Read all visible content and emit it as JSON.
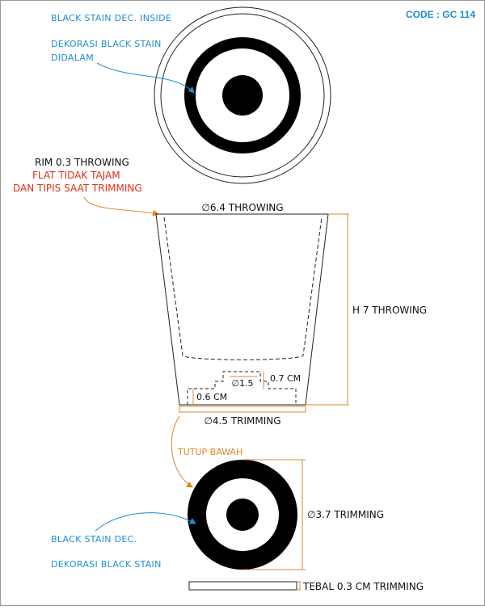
{
  "code_label": "CODE : GC 114",
  "top_view": {
    "label_en": "BLACK STAIN DEC. INSIDE",
    "label_id_line1": "DEKORASI BLACK STAIN",
    "label_id_line2": "DIDALAM"
  },
  "rim_note": {
    "line1": "RIM 0.3 THROWING",
    "line2": "FLAT TIDAK TAJAM",
    "line3": "DAN TIPIS SAAT TRIMMING"
  },
  "side_view": {
    "top_diameter": "∅6.4 THROWING",
    "height": "H 7 THROWING",
    "foot_inner_diameter": "∅1.5",
    "foot_step_height": "0.7 CM",
    "foot_height": "0.6 CM",
    "bottom_diameter": "∅4.5 TRIMMING"
  },
  "bottom_view": {
    "title": "TUTUP BAWAH",
    "diameter": "∅3.7 TRIMMING",
    "label_en": "BLACK STAIN DEC.",
    "label_id": "DEKORASI BLACK STAIN"
  },
  "thickness_note": "TEBAL 0.3 CM TRIMMING",
  "colors": {
    "accent_blue": "#1f8ecd",
    "accent_red": "#d9301c",
    "accent_orange": "#e0862c",
    "stain": "#000000",
    "line": "#222222"
  }
}
